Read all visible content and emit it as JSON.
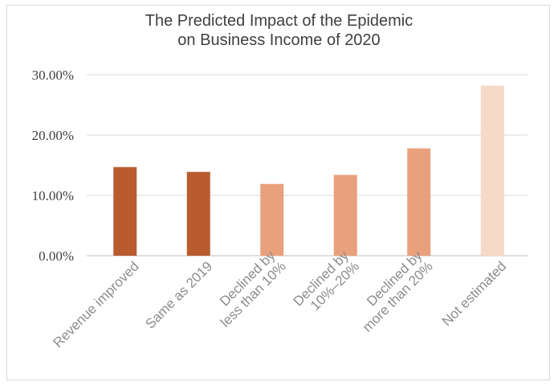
{
  "chart_data": {
    "type": "bar",
    "title_line1": "The Predicted Impact of the Epidemic",
    "title_line2": "on Business Income of 2020",
    "categories": [
      [
        "Revenue improved"
      ],
      [
        "Same as 2019"
      ],
      [
        "Declined by",
        "less than 10%"
      ],
      [
        "Declined by",
        "10%–20%"
      ],
      [
        "Declined by",
        "more than 20%"
      ],
      [
        "Not estimated"
      ]
    ],
    "values": [
      14.7,
      13.9,
      11.9,
      13.4,
      17.8,
      28.2
    ],
    "colors": [
      "#b85c30",
      "#b85c30",
      "#e9a07c",
      "#e9a07c",
      "#e9a07c",
      "#f7d9c8"
    ],
    "yticks": [
      "0.00%",
      "10.00%",
      "20.00%",
      "30.00%"
    ],
    "ylim": [
      0,
      30
    ],
    "grid": true,
    "xlabel": "",
    "ylabel": ""
  }
}
